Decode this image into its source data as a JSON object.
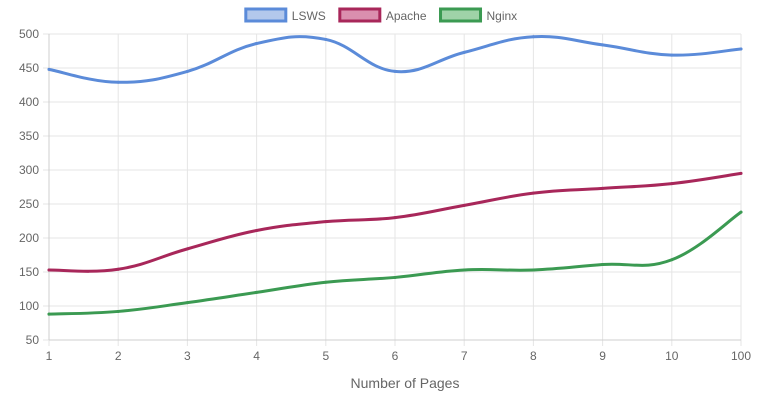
{
  "chart_data": {
    "type": "line",
    "xlabel": "Number of Pages",
    "ylabel": "",
    "ylim": [
      50,
      500
    ],
    "y_ticks": [
      50,
      100,
      150,
      200,
      250,
      300,
      350,
      400,
      450,
      500
    ],
    "categories": [
      "1",
      "2",
      "3",
      "4",
      "5",
      "6",
      "7",
      "8",
      "9",
      "10",
      "100"
    ],
    "grid": true,
    "legend_position": "top",
    "series": [
      {
        "name": "LSWS",
        "color": "#5b8bd9",
        "fill": "#b3c8ec",
        "values": [
          448,
          429,
          445,
          486,
          492,
          445,
          473,
          496,
          484,
          469,
          478
        ]
      },
      {
        "name": "Apache",
        "color": "#a8275a",
        "fill": "#da8fae",
        "values": [
          153,
          154,
          184,
          211,
          224,
          230,
          248,
          266,
          273,
          280,
          295
        ]
      },
      {
        "name": "Nginx",
        "color": "#3b9a52",
        "fill": "#9fd3a8",
        "values": [
          88,
          92,
          105,
          120,
          135,
          142,
          153,
          153,
          161,
          168,
          238
        ]
      }
    ]
  }
}
